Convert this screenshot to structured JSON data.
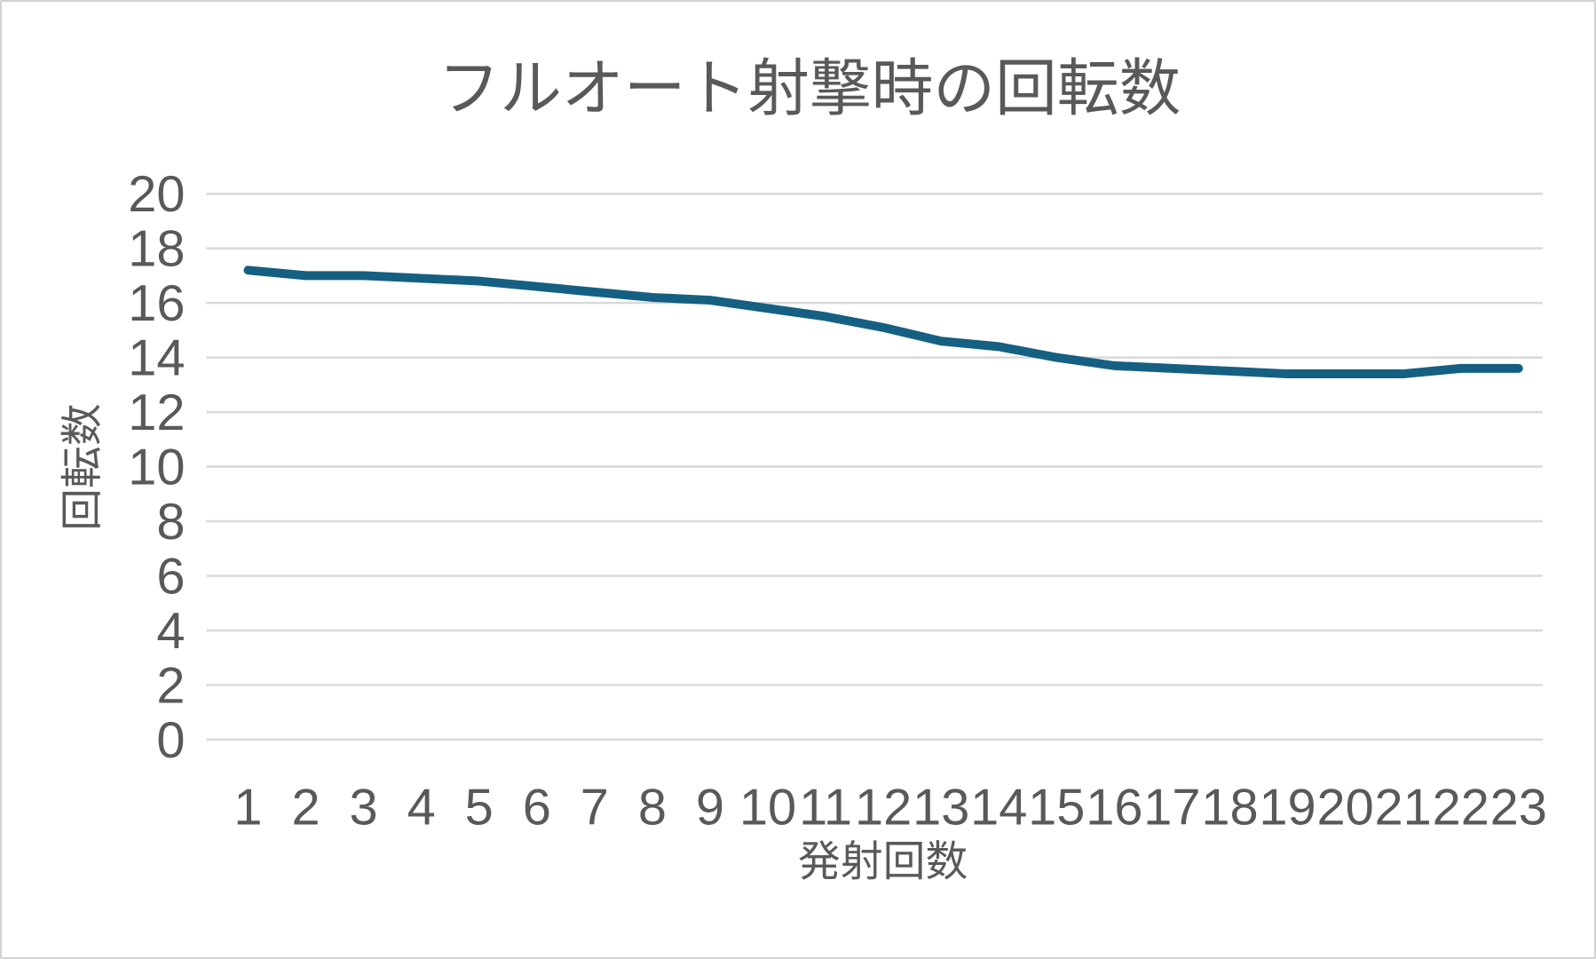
{
  "chart_data": {
    "type": "line",
    "title": "フルオート射撃時の回転数",
    "xlabel": "発射回数",
    "ylabel": "回転数",
    "categories": [
      1,
      2,
      3,
      4,
      5,
      6,
      7,
      8,
      9,
      10,
      11,
      12,
      13,
      14,
      15,
      16,
      17,
      18,
      19,
      20,
      21,
      22,
      23
    ],
    "series": [
      {
        "name": "回転数",
        "values": [
          17.2,
          17.0,
          17.0,
          16.9,
          16.8,
          16.6,
          16.4,
          16.2,
          16.1,
          15.8,
          15.5,
          15.1,
          14.6,
          14.4,
          14.0,
          13.7,
          13.6,
          13.5,
          13.4,
          13.4,
          13.4,
          13.6,
          13.6
        ]
      }
    ],
    "ylim": [
      0,
      20
    ],
    "ytick_step": 2,
    "yticks": [
      0,
      2,
      4,
      6,
      8,
      10,
      12,
      14,
      16,
      18,
      20
    ],
    "grid": true,
    "legend_position": "none",
    "colors": {
      "line": "#156082",
      "gridline": "#d9d9d9",
      "text": "#595959",
      "background": "#ffffff",
      "frame_border": "#d1d1d1"
    }
  }
}
